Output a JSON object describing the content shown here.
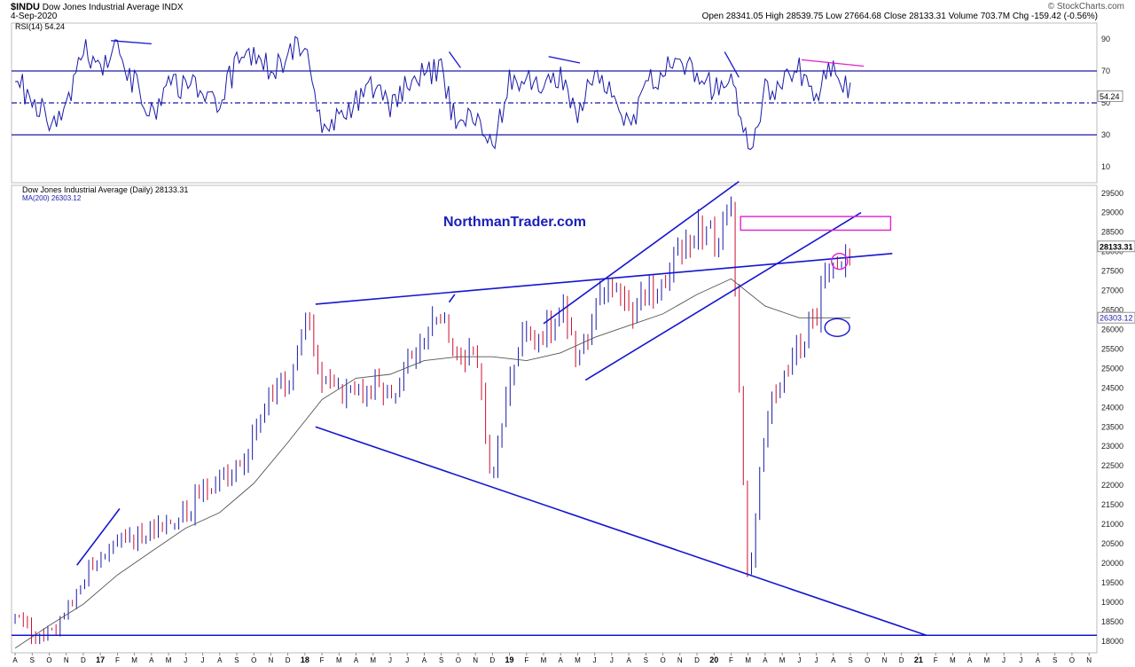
{
  "header": {
    "symbol": "$INDU",
    "name": "Dow Jones Industrial Average",
    "exchange": "INDX",
    "date": "4-Sep-2020",
    "quote": "Open 28341.05  High 28539.75  Low 27664.68  Close 28133.31  Volume 703.7M  Chg -159.42 (-0.56%)",
    "brand": "© StockCharts.com"
  },
  "colors": {
    "line": "#1a1aa8",
    "trend": "#1515d0",
    "magenta": "#e020d0",
    "down": "#cc1030",
    "fill": "#6e7eb4",
    "ma": "#555555"
  },
  "chart_data": [
    {
      "type": "line",
      "title": "RSI(14) 54.24",
      "last_value_label": "54.24",
      "ylim": [
        0,
        100
      ],
      "y_ticks": [
        90,
        70,
        50,
        30,
        10
      ],
      "reference_lines": [
        70,
        50,
        30
      ],
      "series": [
        {
          "name": "RSI(14)",
          "x": [
            "2016-08",
            "2016-09",
            "2016-10",
            "2016-11",
            "2016-12",
            "2017-01",
            "2017-02",
            "2017-03",
            "2017-04",
            "2017-05",
            "2017-06",
            "2017-07",
            "2017-08",
            "2017-09",
            "2017-10",
            "2017-11",
            "2017-12",
            "2018-01",
            "2018-02",
            "2018-03",
            "2018-04",
            "2018-05",
            "2018-06",
            "2018-07",
            "2018-08",
            "2018-09",
            "2018-10",
            "2018-11",
            "2018-12",
            "2019-01",
            "2019-02",
            "2019-03",
            "2019-04",
            "2019-05",
            "2019-06",
            "2019-07",
            "2019-08",
            "2019-09",
            "2019-10",
            "2019-11",
            "2019-12",
            "2020-01",
            "2020-02",
            "2020-03",
            "2020-04",
            "2020-05",
            "2020-06",
            "2020-07",
            "2020-08",
            "2020-09"
          ],
          "values": [
            66,
            52,
            40,
            44,
            84,
            70,
            86,
            62,
            44,
            60,
            62,
            58,
            52,
            74,
            82,
            70,
            80,
            86,
            30,
            42,
            52,
            60,
            48,
            62,
            68,
            70,
            30,
            44,
            22,
            64,
            68,
            58,
            70,
            40,
            68,
            62,
            32,
            60,
            70,
            74,
            68,
            58,
            70,
            18,
            58,
            60,
            70,
            54,
            72,
            54
          ]
        }
      ]
    },
    {
      "type": "line",
      "title": "Dow Jones Industrial Average (Daily) 28133.31",
      "last_value_label": "28133.31",
      "xlabel": "",
      "ylabel": "",
      "ylim": [
        17700,
        29700
      ],
      "y_ticks": [
        29500,
        29000,
        28500,
        28000,
        27500,
        27000,
        26500,
        26000,
        25500,
        25000,
        24500,
        24000,
        23500,
        23000,
        22500,
        22000,
        21500,
        21000,
        20500,
        20000,
        19500,
        19000,
        18500,
        18000
      ],
      "x_ticks": [
        "A",
        "S",
        "O",
        "N",
        "D",
        "17",
        "F",
        "M",
        "A",
        "M",
        "J",
        "J",
        "A",
        "S",
        "O",
        "N",
        "D",
        "18",
        "F",
        "M",
        "A",
        "M",
        "J",
        "J",
        "A",
        "S",
        "O",
        "N",
        "D",
        "19",
        "F",
        "M",
        "A",
        "M",
        "J",
        "J",
        "A",
        "S",
        "O",
        "N",
        "D",
        "20",
        "F",
        "M",
        "A",
        "M",
        "J",
        "J",
        "A",
        "S",
        "O",
        "N",
        "D",
        "21",
        "F",
        "M",
        "A",
        "M",
        "J",
        "J",
        "A",
        "S",
        "O",
        "N"
      ],
      "annotation": "NorthmanTrader.com",
      "series": [
        {
          "name": "Dow Jones Industrial Average (Daily)",
          "x": [
            "2016-08",
            "2016-09",
            "2016-10",
            "2016-11",
            "2016-12",
            "2017-01",
            "2017-02",
            "2017-03",
            "2017-04",
            "2017-05",
            "2017-06",
            "2017-07",
            "2017-08",
            "2017-09",
            "2017-10",
            "2017-11",
            "2017-12",
            "2018-01",
            "2018-02",
            "2018-03",
            "2018-04",
            "2018-05",
            "2018-06",
            "2018-07",
            "2018-08",
            "2018-09",
            "2018-10",
            "2018-11",
            "2018-12",
            "2019-01",
            "2019-02",
            "2019-03",
            "2019-04",
            "2019-05",
            "2019-06",
            "2019-07",
            "2019-08",
            "2019-09",
            "2019-10",
            "2019-11",
            "2019-12",
            "2020-01",
            "2020-02",
            "2020-03",
            "2020-04",
            "2020-05",
            "2020-06",
            "2020-07",
            "2020-08",
            "2020-09"
          ],
          "values": [
            18550,
            18300,
            18200,
            18900,
            19750,
            19850,
            20700,
            20700,
            20650,
            20950,
            21300,
            21800,
            21950,
            22300,
            23300,
            24200,
            24750,
            26400,
            24800,
            24400,
            24300,
            24700,
            24300,
            25300,
            25900,
            26450,
            25100,
            25500,
            22000,
            24900,
            25900,
            25800,
            26600,
            25100,
            26600,
            27100,
            26300,
            26900,
            27000,
            28000,
            28500,
            28300,
            29200,
            19200,
            23700,
            24800,
            25700,
            26400,
            27800,
            28133
          ]
        },
        {
          "name": "MA(200) 26303.12",
          "x": [
            "2016-08",
            "2016-10",
            "2016-12",
            "2017-02",
            "2017-04",
            "2017-06",
            "2017-08",
            "2017-10",
            "2017-12",
            "2018-02",
            "2018-04",
            "2018-06",
            "2018-08",
            "2018-10",
            "2018-12",
            "2019-02",
            "2019-04",
            "2019-06",
            "2019-08",
            "2019-10",
            "2019-12",
            "2020-02",
            "2020-04",
            "2020-06",
            "2020-08",
            "2020-09"
          ],
          "values": [
            17820,
            18400,
            18950,
            19700,
            20300,
            20900,
            21300,
            22050,
            23100,
            24200,
            24750,
            24850,
            25200,
            25300,
            25300,
            25200,
            25400,
            25800,
            26100,
            26400,
            26900,
            27300,
            26600,
            26300,
            26300,
            26303
          ]
        }
      ]
    }
  ]
}
